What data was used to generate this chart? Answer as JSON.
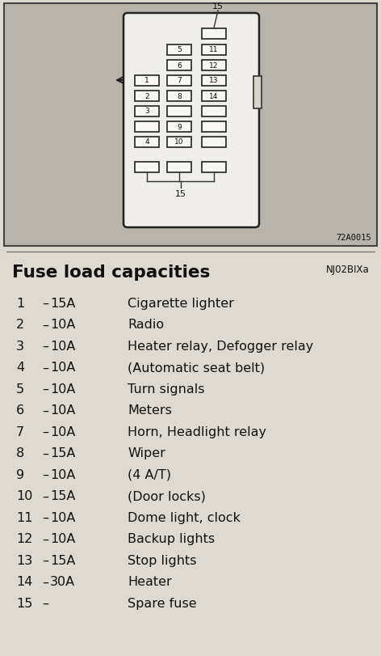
{
  "title": "Fuse load capacities",
  "title_ref": "NJ02BIXa",
  "page_bg": "#c8c4bc",
  "diagram_bg": "#b8b4ac",
  "panel_bg": "#f0eeea",
  "fuse_bg": "#f8f6f2",
  "fuse_entries": [
    {
      "num": "1",
      "amp": "15A",
      "desc": "Cigarette lighter"
    },
    {
      "num": "2",
      "amp": "10A",
      "desc": "Radio"
    },
    {
      "num": "3",
      "amp": "10A",
      "desc": "Heater relay, Defogger relay"
    },
    {
      "num": "4",
      "amp": "10A",
      "desc": "(Automatic seat belt)"
    },
    {
      "num": "5",
      "amp": "10A",
      "desc": "Turn signals"
    },
    {
      "num": "6",
      "amp": "10A",
      "desc": "Meters"
    },
    {
      "num": "7",
      "amp": "10A",
      "desc": "Horn, Headlight relay"
    },
    {
      "num": "8",
      "amp": "15A",
      "desc": "Wiper"
    },
    {
      "num": "9",
      "amp": "10A",
      "desc": "(4 A/T)"
    },
    {
      "num": "10",
      "amp": "15A",
      "desc": "(Door locks)"
    },
    {
      "num": "11",
      "amp": "10A",
      "desc": "Dome light, clock"
    },
    {
      "num": "12",
      "amp": "10A",
      "desc": "Backup lights"
    },
    {
      "num": "13",
      "amp": "15A",
      "desc": "Stop lights"
    },
    {
      "num": "14",
      "amp": "30A",
      "desc": "Heater"
    },
    {
      "num": "15",
      "amp": "",
      "desc": "Spare fuse"
    }
  ],
  "diagram_ref": "72A0015",
  "text_bg": "#dedad2"
}
